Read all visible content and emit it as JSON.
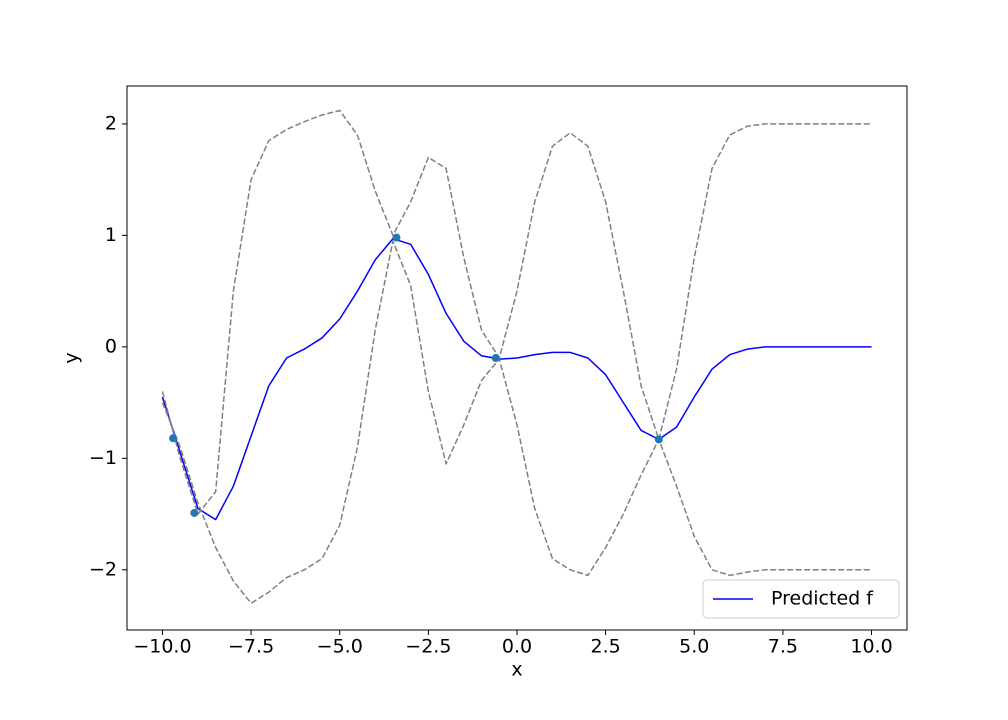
{
  "chart_data": {
    "type": "line",
    "x_label": "x",
    "y_label": "y",
    "x": [
      -10,
      -9.5,
      -9,
      -8.5,
      -8,
      -7.5,
      -7,
      -6.5,
      -6,
      -5.5,
      -5,
      -4.5,
      -4,
      -3.5,
      -3,
      -2.5,
      -2,
      -1.5,
      -1,
      -0.5,
      0,
      0.5,
      1,
      1.5,
      2,
      2.5,
      3,
      3.5,
      4,
      4.5,
      5,
      5.5,
      6,
      6.5,
      7,
      7.5,
      8,
      8.5,
      9,
      9.5,
      10
    ],
    "series": [
      {
        "name": "Predicted f",
        "color": "#0000ff",
        "dashed": false,
        "values": [
          -0.45,
          -0.95,
          -1.45,
          -1.55,
          -1.25,
          -0.8,
          -0.35,
          -0.1,
          -0.02,
          0.08,
          0.25,
          0.5,
          0.78,
          0.97,
          0.92,
          0.65,
          0.3,
          0.05,
          -0.08,
          -0.11,
          -0.1,
          -0.07,
          -0.05,
          -0.05,
          -0.1,
          -0.25,
          -0.5,
          -0.75,
          -0.83,
          -0.72,
          -0.45,
          -0.2,
          -0.07,
          -0.02,
          0,
          0,
          0,
          0,
          0,
          0,
          0
        ]
      },
      {
        "color": "#808080",
        "dashed": true,
        "values": [
          -0.4,
          -1.0,
          -1.5,
          -1.3,
          0.5,
          1.5,
          1.85,
          1.95,
          2.02,
          2.08,
          2.12,
          1.9,
          1.4,
          1.0,
          1.3,
          1.7,
          1.6,
          0.8,
          0.15,
          -0.1,
          0.5,
          1.3,
          1.8,
          1.92,
          1.8,
          1.3,
          0.5,
          -0.35,
          -0.83,
          -0.2,
          0.8,
          1.6,
          1.9,
          1.98,
          2.0,
          2.0,
          2.0,
          2.0,
          2.0,
          2.0,
          2.0
        ]
      },
      {
        "color": "#808080",
        "dashed": true,
        "values": [
          -0.5,
          -0.9,
          -1.4,
          -1.8,
          -2.1,
          -2.3,
          -2.2,
          -2.07,
          -2.0,
          -1.9,
          -1.6,
          -0.9,
          0.15,
          0.95,
          0.55,
          -0.4,
          -1.05,
          -0.7,
          -0.3,
          -0.11,
          -0.7,
          -1.45,
          -1.9,
          -2.0,
          -2.05,
          -1.8,
          -1.5,
          -1.15,
          -0.83,
          -1.25,
          -1.7,
          -2.0,
          -2.05,
          -2.02,
          -2.0,
          -2.0,
          -2.0,
          -2.0,
          -2.0,
          -2.0,
          -2.0
        ]
      }
    ],
    "points": {
      "color": "#1f77b4",
      "x": [
        -9.7,
        -9.1,
        -3.4,
        -0.6,
        4.0
      ],
      "y": [
        -0.82,
        -1.49,
        0.98,
        -0.1,
        -0.83
      ]
    },
    "xlim": [
      -11,
      11
    ],
    "ylim": [
      -2.54,
      2.34
    ],
    "xticks": [
      {
        "value": -10,
        "label": "−10.0"
      },
      {
        "value": -7.5,
        "label": "−7.5"
      },
      {
        "value": -5,
        "label": "−5.0"
      },
      {
        "value": -2.5,
        "label": "−2.5"
      },
      {
        "value": 0,
        "label": "0.0"
      },
      2.5,
      {
        "value": 5,
        "label": "5.0"
      },
      7.5,
      {
        "value": 10,
        "label": "10.0"
      }
    ],
    "yticks": [
      {
        "value": -2,
        "label": "−2"
      },
      {
        "value": -1,
        "label": "−1"
      },
      0,
      1,
      2
    ],
    "legend_location": "lower right",
    "grid": false
  }
}
